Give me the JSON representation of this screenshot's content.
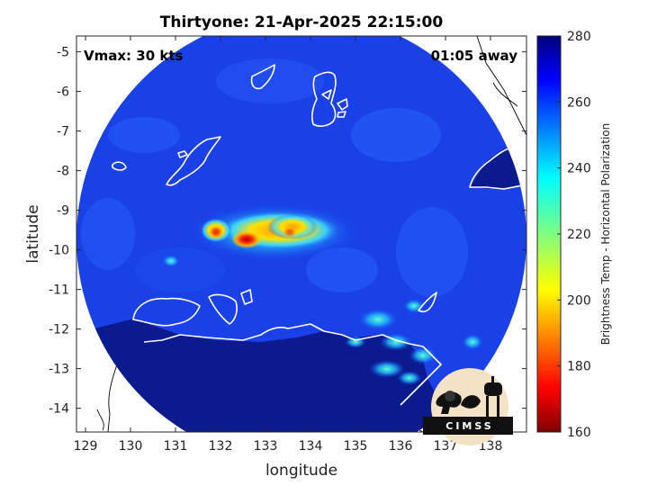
{
  "title": "Thirtyone: 21-Apr-2025 22:15:00",
  "vmax_label": "Vmax: 30 kts",
  "time_away": "01:05 away",
  "logo_text": "CIMSS",
  "chart_data": {
    "type": "heatmap",
    "xlabel": "longitude",
    "ylabel": "latitude",
    "colorbar_label": "Brightness Temp - Horizontal Polarization",
    "xlim": [
      128.8,
      138.8
    ],
    "ylim": [
      -14.6,
      -4.6
    ],
    "x_ticks": [
      "129",
      "130",
      "131",
      "132",
      "133",
      "134",
      "135",
      "136",
      "137",
      "138"
    ],
    "y_ticks": [
      "-5",
      "-6",
      "-7",
      "-8",
      "-9",
      "-10",
      "-11",
      "-12",
      "-13",
      "-14"
    ],
    "colorbar_range": [
      160,
      280
    ],
    "colorbar_ticks": [
      "280",
      "260",
      "240",
      "220",
      "200",
      "180",
      "160"
    ],
    "colormap": "jet",
    "colors": {
      "ocean": "#1a41e8",
      "land": "#0b1a8c",
      "coastline": "#ffffff",
      "outside_coast": "#000000"
    },
    "swath": {
      "center_lon": 133.8,
      "center_lat": -9.6,
      "radius_deg": 4.9
    },
    "features": [
      {
        "name": "warm-core",
        "lon": 132.5,
        "lat": -9.9,
        "min_temp": 165
      },
      {
        "name": "convective-band",
        "lon": 133.5,
        "lat": -9.7,
        "min_temp": 200
      },
      {
        "name": "southeast-cells",
        "lon": 136.1,
        "lat": -12.6,
        "min_temp": 230
      }
    ]
  }
}
